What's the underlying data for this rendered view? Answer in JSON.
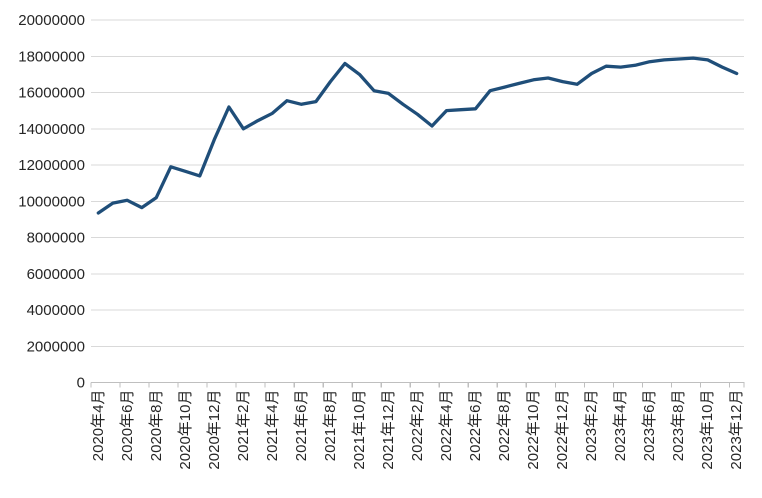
{
  "chart_data": {
    "type": "line",
    "title": "",
    "legend": "none",
    "grid": true,
    "ylim": [
      0,
      20000000
    ],
    "y_tick_step": 2000000,
    "y_tick_labels": [
      "0",
      "2000000",
      "4000000",
      "6000000",
      "8000000",
      "10000000",
      "12000000",
      "14000000",
      "16000000",
      "18000000",
      "20000000"
    ],
    "x_label_every": 2,
    "visible_x_tick_labels": [
      "2020年4月",
      "2020年6月",
      "2020年8月",
      "2020年10月",
      "2020年12月",
      "2021年2月",
      "2021年4月",
      "2021年6月",
      "2021年8月",
      "2021年10月",
      "2021年12月",
      "2022年2月",
      "2022年4月",
      "2022年6月",
      "2022年8月",
      "2022年10月",
      "2022年12月",
      "2023年2月",
      "2023年4月",
      "2023年6月",
      "2023年8月",
      "2023年10月",
      "2023年12月"
    ],
    "categories": [
      "2020年4月",
      "2020年5月",
      "2020年6月",
      "2020年7月",
      "2020年8月",
      "2020年9月",
      "2020年10月",
      "2020年11月",
      "2020年12月",
      "2021年1月",
      "2021年2月",
      "2021年3月",
      "2021年4月",
      "2021年5月",
      "2021年6月",
      "2021年7月",
      "2021年8月",
      "2021年9月",
      "2021年10月",
      "2021年11月",
      "2021年12月",
      "2022年1月",
      "2022年2月",
      "2022年3月",
      "2022年4月",
      "2022年5月",
      "2022年6月",
      "2022年7月",
      "2022年8月",
      "2022年9月",
      "2022年10月",
      "2022年11月",
      "2022年12月",
      "2023年1月",
      "2023年2月",
      "2023年3月",
      "2023年4月",
      "2023年5月",
      "2023年6月",
      "2023年7月",
      "2023年8月",
      "2023年9月",
      "2023年10月",
      "2023年11月",
      "2023年12月"
    ],
    "series": [
      {
        "name": "",
        "values": [
          9350000,
          9900000,
          10050000,
          9650000,
          10200000,
          11900000,
          11650000,
          11400000,
          13400000,
          15200000,
          14000000,
          14450000,
          14850000,
          15550000,
          15350000,
          15500000,
          16600000,
          17600000,
          17000000,
          16100000,
          15950000,
          15350000,
          14800000,
          14150000,
          15000000,
          15050000,
          15100000,
          16100000,
          16300000,
          16500000,
          16700000,
          16800000,
          16600000,
          16450000,
          17050000,
          17450000,
          17400000,
          17500000,
          17700000,
          17800000,
          17850000,
          17900000,
          17800000,
          17400000,
          17050000
        ]
      }
    ],
    "colors": {
      "line": "#1F4E79",
      "gridline": "#D9D9D9",
      "axis": "#BFBFBF",
      "text": "#262626",
      "background": "#FFFFFF"
    }
  }
}
